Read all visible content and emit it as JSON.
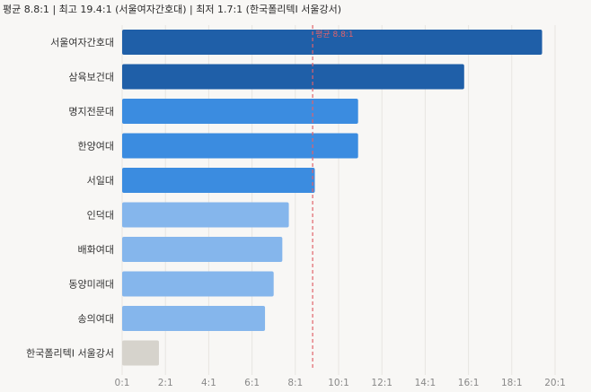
{
  "summary": {
    "average": "평균 8.8:1",
    "max": "최고 19.4:1 (서울여자간호대)",
    "min": "최저 1.7:1 (한국폴리텍Ⅰ 서울강서)",
    "sep": "|"
  },
  "chart_data": {
    "type": "bar",
    "orientation": "horizontal",
    "categories": [
      "서울여자간호대",
      "삼육보건대",
      "명지전문대",
      "한양여대",
      "서일대",
      "인덕대",
      "배화여대",
      "동양미래대",
      "송의여대",
      "한국폴리텍Ⅰ 서울강서"
    ],
    "values": [
      19.4,
      15.8,
      10.9,
      10.9,
      8.9,
      7.7,
      7.4,
      7.0,
      6.6,
      1.7
    ],
    "bar_colors": [
      "#1f5fa8",
      "#1f5fa8",
      "#3b8ce0",
      "#3b8ce0",
      "#3b8ce0",
      "#85b6ec",
      "#85b6ec",
      "#85b6ec",
      "#85b6ec",
      "#d6d3cc"
    ],
    "xlim": [
      0,
      20
    ],
    "xticks": [
      0,
      2,
      4,
      6,
      8,
      10,
      12,
      14,
      16,
      18,
      20
    ],
    "xtick_labels": [
      "0:1",
      "2:1",
      "4:1",
      "6:1",
      "8:1",
      "10:1",
      "12:1",
      "14:1",
      "16:1",
      "18:1",
      "20:1"
    ],
    "average_line": {
      "value": 8.8,
      "label": "평균 8.8:1",
      "color": "#e0626a"
    },
    "grid": true
  }
}
